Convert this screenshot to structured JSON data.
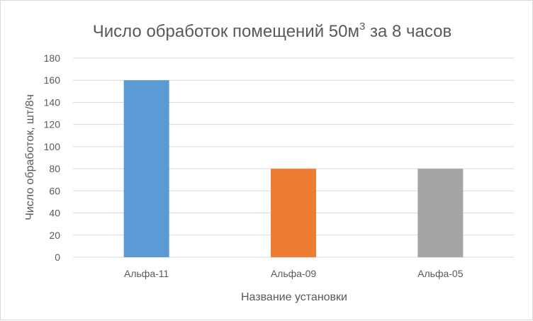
{
  "chart_data": {
    "type": "bar",
    "title": "Число обработок помещений 50м",
    "title_sup": "3",
    "title_suffix": " за 8 часов",
    "xlabel": "Название установки",
    "ylabel": "Число обработок, шт/8ч",
    "categories": [
      "Альфа-11",
      "Альфа-09",
      "Альфа-05"
    ],
    "values": [
      160,
      80,
      80
    ],
    "bar_colors": [
      "#5b9bd5",
      "#ed7d31",
      "#a5a5a5"
    ],
    "ylim": [
      0,
      180
    ],
    "yticks": [
      0,
      20,
      40,
      60,
      80,
      100,
      120,
      140,
      160,
      180
    ],
    "grid": true,
    "legend": "none"
  }
}
